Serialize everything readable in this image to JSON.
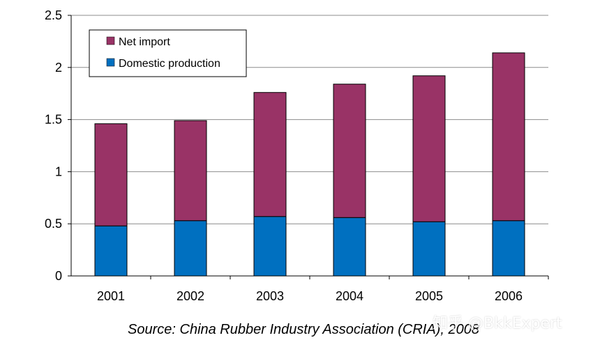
{
  "chart_data": {
    "type": "bar",
    "stacked": true,
    "categories": [
      "2001",
      "2002",
      "2003",
      "2004",
      "2005",
      "2006"
    ],
    "series": [
      {
        "name": "Domestic production",
        "color": "#0070C0",
        "values": [
          0.48,
          0.53,
          0.57,
          0.56,
          0.52,
          0.53
        ]
      },
      {
        "name": "Net import",
        "color": "#993366",
        "values": [
          0.98,
          0.96,
          1.19,
          1.28,
          1.4,
          1.61
        ]
      }
    ],
    "legend_order": [
      "Net import",
      "Domestic production"
    ],
    "ylim": [
      0,
      2.5
    ],
    "yticks": [
      "0",
      "0.5",
      "1",
      "1.5",
      "2",
      "2.5"
    ],
    "ytick_values": [
      0,
      0.5,
      1,
      1.5,
      2,
      2.5
    ],
    "grid": true,
    "legend_position": "top-left",
    "title": "",
    "xlabel": "",
    "ylabel": ""
  },
  "source_note": "Source: China Rubber Industry Association (CRIA), 2008",
  "watermark": "知乎 @BkkExpert"
}
